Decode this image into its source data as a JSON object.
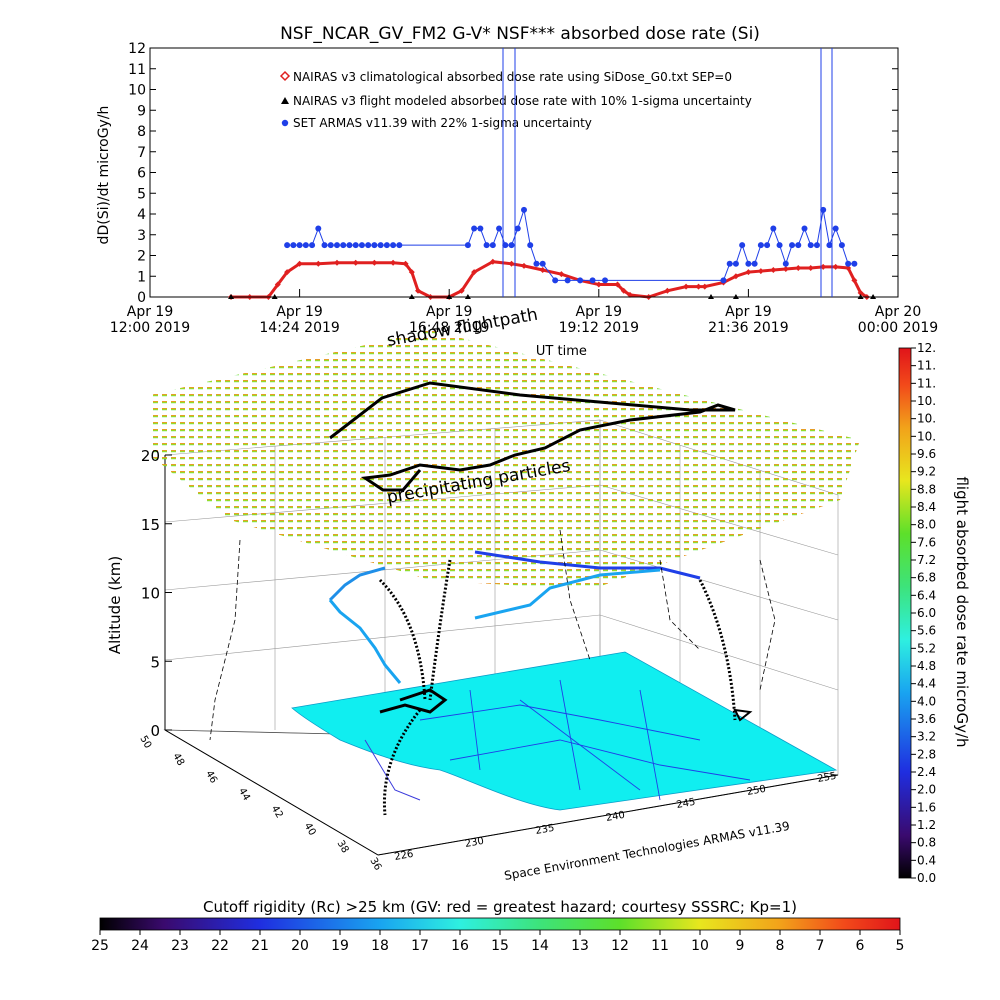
{
  "chart_data": [
    {
      "type": "line",
      "title": "NSF_NCAR_GV_FM2 G-V* NSF*** absorbed dose rate (Si)",
      "xlabel": "UT time",
      "ylabel": "dD(Si)/dt microGy/h",
      "ylim": [
        0,
        12
      ],
      "yticks": [
        "0",
        "1",
        "2",
        "3",
        "4",
        "5",
        "6",
        "7",
        "8",
        "9",
        "10",
        "11",
        "12"
      ],
      "xticks": [
        {
          "t": 12.0,
          "l1": "Apr 19",
          "l2": "12:00 2019"
        },
        {
          "t": 14.4,
          "l1": "Apr 19",
          "l2": "14:24 2019"
        },
        {
          "t": 16.8,
          "l1": "Apr 19",
          "l2": "16:48 2019"
        },
        {
          "t": 19.2,
          "l1": "Apr 19",
          "l2": "19:12 2019"
        },
        {
          "t": 21.6,
          "l1": "Apr 19",
          "l2": "21:36 2019"
        },
        {
          "t": 24.0,
          "l1": "Apr 20",
          "l2": "00:00 2019"
        }
      ],
      "xlim_hours": [
        12,
        24
      ],
      "legend": [
        "NAIRAS v3 climatological absorbed dose rate using SiDose_G0.txt SEP=0",
        "NAIRAS v3 flight modeled absorbed dose rate with 10% 1-sigma uncertainty",
        "SET ARMAS v11.39 with 22% 1-sigma uncertainty"
      ],
      "legend_position": "top-center",
      "series": [
        {
          "name": "NAIRAS v3 climatological absorbed dose rate using SiDose_G0.txt SEP=0",
          "color": "#e02020",
          "x": [
            13.3,
            13.6,
            13.9,
            14.05,
            14.2,
            14.4,
            14.7,
            15.0,
            15.3,
            15.6,
            15.9,
            16.1,
            16.2,
            16.3,
            16.5,
            16.8,
            17.0,
            17.2,
            17.5,
            17.8,
            18.0,
            18.3,
            18.6,
            18.9,
            19.2,
            19.5,
            19.6,
            19.7,
            20.0,
            20.3,
            20.6,
            20.8,
            20.9,
            21.2,
            21.4,
            21.6,
            21.8,
            22.0,
            22.2,
            22.4,
            22.6,
            22.8,
            23.0,
            23.2,
            23.3,
            23.4,
            23.5
          ],
          "y": [
            0,
            0,
            0,
            0.6,
            1.2,
            1.6,
            1.6,
            1.65,
            1.65,
            1.65,
            1.65,
            1.6,
            1.2,
            0.3,
            0,
            0,
            0.3,
            1.2,
            1.7,
            1.6,
            1.5,
            1.3,
            1.1,
            0.8,
            0.6,
            0.6,
            0.3,
            0.1,
            0,
            0.3,
            0.5,
            0.5,
            0.5,
            0.7,
            1.0,
            1.2,
            1.25,
            1.3,
            1.35,
            1.4,
            1.4,
            1.45,
            1.45,
            1.4,
            0.8,
            0.2,
            0
          ]
        },
        {
          "name": "NAIRAS v3 flight modeled absorbed dose rate with 10% 1-sigma uncertainty",
          "color": "#000000",
          "x": [
            13.3,
            14.0,
            16.2,
            16.8,
            17.1,
            21.0,
            21.4,
            23.4,
            23.6
          ],
          "y": [
            0,
            0,
            0,
            0,
            0,
            0,
            0,
            0,
            0
          ]
        },
        {
          "name": "SET ARMAS v11.39 with 22% 1-sigma uncertainty",
          "color": "#1f3fe8",
          "x": [
            14.2,
            14.3,
            14.4,
            14.5,
            14.6,
            14.7,
            14.8,
            14.9,
            15.0,
            15.1,
            15.2,
            15.3,
            15.4,
            15.5,
            15.6,
            15.7,
            15.8,
            15.9,
            16.0,
            17.1,
            17.2,
            17.3,
            17.4,
            17.5,
            17.6,
            17.7,
            17.8,
            17.9,
            18.0,
            18.1,
            18.2,
            18.3,
            18.5,
            18.7,
            18.9,
            19.1,
            19.3,
            21.2,
            21.3,
            21.4,
            21.5,
            21.6,
            21.7,
            21.8,
            21.9,
            22.0,
            22.1,
            22.2,
            22.3,
            22.4,
            22.5,
            22.6,
            22.7,
            22.8,
            22.9,
            23.0,
            23.1,
            23.2,
            23.3
          ],
          "y": [
            2.5,
            2.5,
            2.5,
            2.5,
            2.5,
            3.3,
            2.5,
            2.5,
            2.5,
            2.5,
            2.5,
            2.5,
            2.5,
            2.5,
            2.5,
            2.5,
            2.5,
            2.5,
            2.5,
            2.5,
            3.3,
            3.3,
            2.5,
            2.5,
            3.3,
            2.5,
            2.5,
            3.3,
            4.2,
            2.5,
            1.6,
            1.6,
            0.8,
            0.8,
            0.8,
            0.8,
            0.8,
            0.8,
            1.6,
            1.6,
            2.5,
            1.6,
            1.6,
            2.5,
            2.5,
            3.3,
            2.5,
            1.6,
            2.5,
            2.5,
            3.3,
            2.5,
            2.5,
            4.2,
            2.5,
            3.3,
            2.5,
            1.6,
            1.6
          ]
        }
      ]
    },
    {
      "type": "scatter",
      "subtype": "3d-flight-track",
      "zlabel": "Altitude (km)",
      "zticks": [
        "0",
        "5",
        "10",
        "15",
        "20"
      ],
      "lat_ticks": [
        "36",
        "38",
        "40",
        "42",
        "44",
        "46",
        "48",
        "50"
      ],
      "lon_ticks": [
        "226",
        "230",
        "235",
        "240",
        "245",
        "250",
        "255"
      ],
      "annotations": [
        "shadow flightpath",
        "precipitating particles"
      ],
      "credit": "Space Environment Technologies ARMAS v11.39"
    },
    {
      "type": "heatmap",
      "colorbar": "vertical",
      "label": "flight absorbed dose rate microGy/h",
      "ticks": [
        "0.0",
        "0.4",
        "0.8",
        "1.2",
        "1.6",
        "2.0",
        "2.4",
        "2.8",
        "3.2",
        "3.6",
        "4.0",
        "4.4",
        "4.8",
        "5.2",
        "5.6",
        "6.0",
        "6.4",
        "6.8",
        "7.2",
        "7.6",
        "8.0",
        "8.4",
        "8.8",
        "9.2",
        "9.6",
        "10.",
        "10.",
        "10.",
        "11.",
        "11.",
        "12."
      ]
    },
    {
      "type": "heatmap",
      "colorbar": "horizontal",
      "label": "Cutoff rigidity (Rc) >25 km (GV: red = greatest hazard; courtesy SSSRC; Kp=1)",
      "ticks": [
        "25",
        "24",
        "23",
        "22",
        "21",
        "20",
        "19",
        "18",
        "17",
        "16",
        "15",
        "14",
        "13",
        "12",
        "11",
        "10",
        "9",
        "8",
        "7",
        "6",
        "5"
      ]
    }
  ]
}
